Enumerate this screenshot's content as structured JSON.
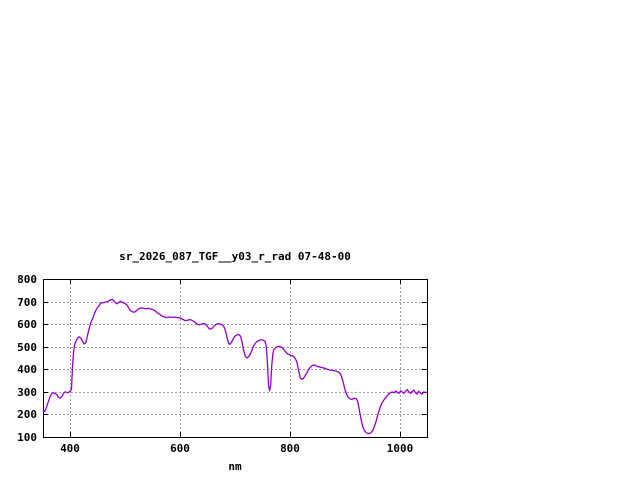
{
  "page": {
    "background": "#ffffff"
  },
  "chart_data": {
    "type": "line",
    "title": "sr_2026_087_TGF__y03_r_rad 07-48-00",
    "xlabel": "nm",
    "ylabel": "",
    "xlim": [
      350,
      1050
    ],
    "ylim": [
      100,
      800
    ],
    "x_ticks": [
      400,
      600,
      800,
      1000
    ],
    "y_ticks": [
      100,
      200,
      300,
      400,
      500,
      600,
      700,
      800
    ],
    "grid": true,
    "legend_position": "none",
    "line_color": "#9400D3",
    "grid_color": "#a0a0a0",
    "axis_color": "#000000",
    "series": [
      {
        "name": "sr_2026_087_TGF__y03_r_rad",
        "points": [
          [
            350,
            220
          ],
          [
            353,
            212
          ],
          [
            356,
            230
          ],
          [
            360,
            258
          ],
          [
            363,
            280
          ],
          [
            366,
            292
          ],
          [
            369,
            296
          ],
          [
            372,
            293
          ],
          [
            375,
            288
          ],
          [
            378,
            276
          ],
          [
            381,
            272
          ],
          [
            384,
            278
          ],
          [
            387,
            292
          ],
          [
            390,
            300
          ],
          [
            393,
            298
          ],
          [
            396,
            296
          ],
          [
            399,
            302
          ],
          [
            402,
            312
          ],
          [
            404,
            420
          ],
          [
            406,
            482
          ],
          [
            408,
            512
          ],
          [
            410,
            525
          ],
          [
            413,
            538
          ],
          [
            416,
            544
          ],
          [
            419,
            538
          ],
          [
            422,
            524
          ],
          [
            425,
            512
          ],
          [
            428,
            518
          ],
          [
            431,
            548
          ],
          [
            434,
            580
          ],
          [
            437,
            605
          ],
          [
            440,
            622
          ],
          [
            443,
            642
          ],
          [
            446,
            660
          ],
          [
            449,
            672
          ],
          [
            452,
            682
          ],
          [
            455,
            692
          ],
          [
            458,
            695
          ],
          [
            461,
            695
          ],
          [
            464,
            698
          ],
          [
            467,
            700
          ],
          [
            470,
            703
          ],
          [
            473,
            707
          ],
          [
            476,
            710
          ],
          [
            479,
            703
          ],
          [
            482,
            695
          ],
          [
            485,
            690
          ],
          [
            488,
            696
          ],
          [
            491,
            701
          ],
          [
            494,
            698
          ],
          [
            497,
            694
          ],
          [
            500,
            691
          ],
          [
            503,
            685
          ],
          [
            506,
            673
          ],
          [
            509,
            661
          ],
          [
            512,
            656
          ],
          [
            515,
            653
          ],
          [
            518,
            655
          ],
          [
            521,
            661
          ],
          [
            524,
            667
          ],
          [
            527,
            671
          ],
          [
            530,
            672
          ],
          [
            533,
            670
          ],
          [
            536,
            668
          ],
          [
            539,
            669
          ],
          [
            542,
            670
          ],
          [
            545,
            668
          ],
          [
            548,
            666
          ],
          [
            551,
            664
          ],
          [
            554,
            660
          ],
          [
            557,
            653
          ],
          [
            560,
            647
          ],
          [
            563,
            644
          ],
          [
            566,
            638
          ],
          [
            569,
            634
          ],
          [
            572,
            631
          ],
          [
            575,
            629
          ],
          [
            578,
            631
          ],
          [
            581,
            632
          ],
          [
            584,
            630
          ],
          [
            587,
            630
          ],
          [
            590,
            631
          ],
          [
            593,
            630
          ],
          [
            596,
            629
          ],
          [
            599,
            628
          ],
          [
            602,
            625
          ],
          [
            605,
            621
          ],
          [
            608,
            617
          ],
          [
            611,
            616
          ],
          [
            614,
            618
          ],
          [
            617,
            620
          ],
          [
            620,
            619
          ],
          [
            623,
            615
          ],
          [
            626,
            610
          ],
          [
            629,
            604
          ],
          [
            632,
            599
          ],
          [
            635,
            597
          ],
          [
            638,
            599
          ],
          [
            641,
            602
          ],
          [
            644,
            603
          ],
          [
            647,
            598
          ],
          [
            650,
            589
          ],
          [
            653,
            580
          ],
          [
            656,
            578
          ],
          [
            659,
            583
          ],
          [
            662,
            592
          ],
          [
            665,
            598
          ],
          [
            668,
            601
          ],
          [
            671,
            602
          ],
          [
            674,
            600
          ],
          [
            677,
            596
          ],
          [
            680,
            588
          ],
          [
            683,
            568
          ],
          [
            686,
            535
          ],
          [
            689,
            511
          ],
          [
            692,
            513
          ],
          [
            695,
            526
          ],
          [
            698,
            540
          ],
          [
            701,
            549
          ],
          [
            704,
            553
          ],
          [
            707,
            554
          ],
          [
            710,
            547
          ],
          [
            713,
            520
          ],
          [
            716,
            480
          ],
          [
            719,
            456
          ],
          [
            722,
            450
          ],
          [
            725,
            456
          ],
          [
            728,
            468
          ],
          [
            731,
            486
          ],
          [
            734,
            504
          ],
          [
            737,
            515
          ],
          [
            740,
            522
          ],
          [
            743,
            527
          ],
          [
            746,
            530
          ],
          [
            749,
            530
          ],
          [
            752,
            528
          ],
          [
            755,
            524
          ],
          [
            757,
            500
          ],
          [
            759,
            430
          ],
          [
            761,
            330
          ],
          [
            763,
            305
          ],
          [
            765,
            330
          ],
          [
            767,
            420
          ],
          [
            769,
            470
          ],
          [
            771,
            487
          ],
          [
            774,
            495
          ],
          [
            777,
            500
          ],
          [
            780,
            502
          ],
          [
            783,
            500
          ],
          [
            786,
            496
          ],
          [
            789,
            488
          ],
          [
            792,
            478
          ],
          [
            795,
            470
          ],
          [
            798,
            466
          ],
          [
            801,
            463
          ],
          [
            804,
            460
          ],
          [
            807,
            456
          ],
          [
            810,
            448
          ],
          [
            813,
            430
          ],
          [
            816,
            395
          ],
          [
            819,
            362
          ],
          [
            822,
            355
          ],
          [
            825,
            360
          ],
          [
            828,
            372
          ],
          [
            831,
            385
          ],
          [
            834,
            398
          ],
          [
            837,
            408
          ],
          [
            840,
            415
          ],
          [
            843,
            419
          ],
          [
            846,
            418
          ],
          [
            849,
            414
          ],
          [
            852,
            411
          ],
          [
            855,
            410
          ],
          [
            858,
            408
          ],
          [
            861,
            406
          ],
          [
            864,
            404
          ],
          [
            867,
            401
          ],
          [
            870,
            399
          ],
          [
            873,
            397
          ],
          [
            876,
            396
          ],
          [
            879,
            395
          ],
          [
            882,
            393
          ],
          [
            885,
            391
          ],
          [
            888,
            389
          ],
          [
            891,
            384
          ],
          [
            894,
            370
          ],
          [
            897,
            345
          ],
          [
            900,
            315
          ],
          [
            903,
            292
          ],
          [
            906,
            277
          ],
          [
            909,
            270
          ],
          [
            912,
            267
          ],
          [
            915,
            268
          ],
          [
            918,
            272
          ],
          [
            921,
            270
          ],
          [
            924,
            255
          ],
          [
            927,
            215
          ],
          [
            930,
            175
          ],
          [
            933,
            145
          ],
          [
            936,
            128
          ],
          [
            939,
            120
          ],
          [
            942,
            116
          ],
          [
            945,
            115
          ],
          [
            948,
            119
          ],
          [
            951,
            128
          ],
          [
            954,
            145
          ],
          [
            957,
            168
          ],
          [
            960,
            195
          ],
          [
            963,
            220
          ],
          [
            966,
            240
          ],
          [
            969,
            255
          ],
          [
            972,
            266
          ],
          [
            975,
            276
          ],
          [
            978,
            285
          ],
          [
            981,
            292
          ],
          [
            984,
            297
          ],
          [
            987,
            300
          ],
          [
            990,
            296
          ],
          [
            993,
            304
          ],
          [
            996,
            298
          ],
          [
            999,
            293
          ],
          [
            1002,
            305
          ],
          [
            1005,
            299
          ],
          [
            1008,
            293
          ],
          [
            1011,
            303
          ],
          [
            1014,
            310
          ],
          [
            1017,
            300
          ],
          [
            1020,
            293
          ],
          [
            1023,
            302
          ],
          [
            1026,
            308
          ],
          [
            1029,
            296
          ],
          [
            1032,
            290
          ],
          [
            1035,
            303
          ],
          [
            1038,
            296
          ],
          [
            1041,
            290
          ],
          [
            1044,
            300
          ],
          [
            1047,
            297
          ],
          [
            1050,
            298
          ]
        ]
      }
    ]
  }
}
